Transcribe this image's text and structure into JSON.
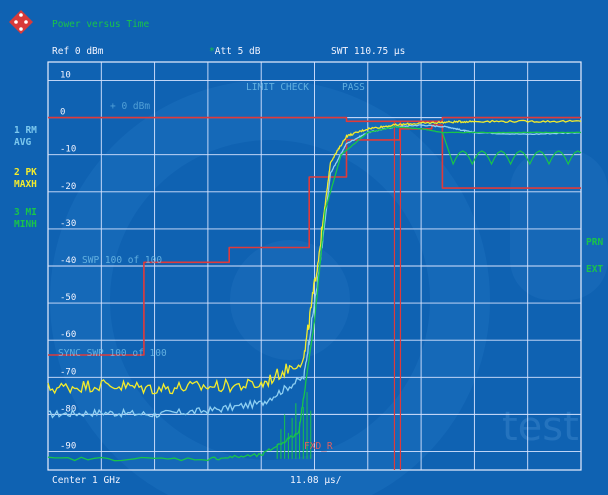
{
  "header": {
    "title": "Power versus Time",
    "ref": "Ref  0 dBm",
    "att": "Att  5 dB",
    "swt": "SWT 110.75 µs"
  },
  "traces": [
    {
      "num": "1 RM",
      "mode": "AVG",
      "color": "#8fd0f2"
    },
    {
      "num": "2 PK",
      "mode": "MAXH",
      "color": "#f3ec2c"
    },
    {
      "num": "3 MI",
      "mode": "MINH",
      "color": "#19c44a"
    }
  ],
  "right_labels": {
    "prn": "PRN",
    "ext": "EXT"
  },
  "limit_check": {
    "label": "LIMIT CHECK",
    "result": "PASS"
  },
  "swp_counter": "SWP   100 of   100",
  "sync_overlay": "SYNC SWP   100 of   100",
  "ref_marker": "+ 0 dBm",
  "fxd_label": "FXD_R",
  "footer": {
    "center": "Center 1 GHz",
    "span": "11.08 µs/"
  },
  "watermark": "test",
  "chart_data": {
    "type": "line",
    "ylabel": "dBm",
    "ylim": [
      -95,
      15
    ],
    "y_ticks": [
      10,
      0,
      -10,
      -20,
      -30,
      -40,
      -50,
      -60,
      -70,
      -80,
      -90
    ],
    "y_tick_labels": [
      "10",
      "0",
      "-10",
      "-20",
      "-30",
      "-40",
      "-50",
      "-60",
      "-70",
      "-80",
      "-90"
    ],
    "x_divisions": 10,
    "xlim": [
      0,
      10
    ],
    "series": [
      {
        "name": "1 RM AVG",
        "color": "#8fd0f2",
        "x": [
          0,
          1,
          2,
          3,
          4,
          4.8,
          5.1,
          5.3,
          5.6,
          6,
          6.5,
          7,
          7.5,
          7.8,
          8,
          9,
          10
        ],
        "y": [
          -80,
          -79.5,
          -80,
          -79,
          -77,
          -70,
          -40,
          -15,
          -7,
          -4,
          -2.5,
          -2,
          -2.5,
          -3.5,
          -4,
          -4.5,
          -4
        ]
      },
      {
        "name": "2 PK MAXH",
        "color": "#f3ec2c",
        "x": [
          0,
          1,
          2,
          3,
          4,
          4.8,
          5.1,
          5.3,
          5.6,
          6,
          6.5,
          7,
          7.5,
          8,
          9,
          10
        ],
        "y": [
          -73,
          -72,
          -73,
          -72.5,
          -72,
          -65,
          -35,
          -12,
          -5,
          -3,
          -2,
          -1.5,
          -1.2,
          -1,
          -1,
          -1
        ]
      },
      {
        "name": "3 MI MINH",
        "color": "#19c44a",
        "x": [
          0,
          3,
          4,
          4.7,
          5,
          5.2,
          5.5,
          6,
          6.5,
          7,
          7.4,
          8,
          9,
          10
        ],
        "y": [
          -92,
          -92,
          -91,
          -85,
          -55,
          -25,
          -10,
          -4,
          -2.5,
          -3,
          -4,
          -4,
          -4,
          -4
        ]
      }
    ],
    "limit_line_upper": {
      "color": "#e03a3a",
      "x": [
        0,
        5.6,
        5.6,
        7.4,
        7.4,
        10
      ],
      "y": [
        0,
        0,
        -1,
        -1,
        0,
        0
      ]
    },
    "limit_line_lower": {
      "color": "#e03a3a",
      "x": [
        0,
        1.8,
        1.8,
        3.4,
        3.4,
        4.9,
        4.9,
        5.6,
        5.6,
        6.6,
        6.6,
        7.2,
        7.2,
        7.4,
        7.4,
        10
      ],
      "y": [
        -64,
        -64,
        -39,
        -39,
        -35,
        -35,
        -16,
        -16,
        -6,
        -6,
        -3,
        -3,
        -2,
        -2,
        -19,
        -19
      ]
    },
    "sync_line_x": 6.5
  }
}
